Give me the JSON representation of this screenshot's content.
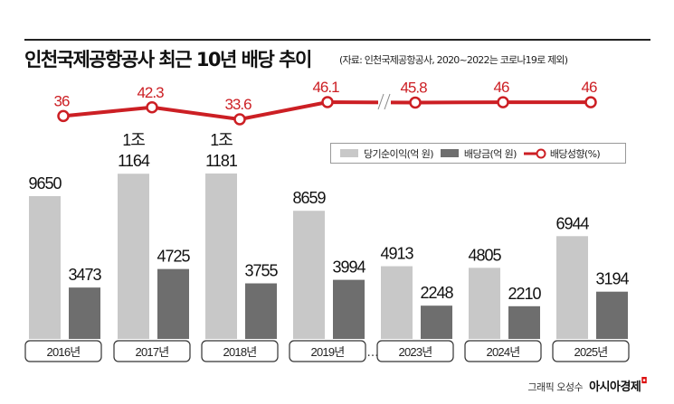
{
  "title": "인천국제공항공사 최근 10년 배당 추이",
  "subtitle": "(자료: 인천국제공항공사, 2020~2022는 코로나19로 제외)",
  "credit": {
    "author": "그래픽 오성수",
    "brand": "아시아경제"
  },
  "chart_data": {
    "type": "bar",
    "title": "인천국제공항공사 최근 10년 배당 추이",
    "categories": [
      "2016년",
      "2017년",
      "2018년",
      "2019년",
      "2023년",
      "2024년",
      "2025년"
    ],
    "gap_marker": "…",
    "line_break_marker": "//",
    "series": [
      {
        "name": "당기순이익(억 원)",
        "type": "bar",
        "color": "#c8c8c8",
        "values": [
          9650,
          11164,
          11181,
          8659,
          4913,
          4805,
          6944
        ],
        "labels": [
          [
            "9650"
          ],
          [
            "1조",
            "1164"
          ],
          [
            "1조",
            "1181"
          ],
          [
            "8659"
          ],
          [
            "4913"
          ],
          [
            "4805"
          ],
          [
            "6944"
          ]
        ]
      },
      {
        "name": "배당금(억 원)",
        "type": "bar",
        "color": "#6e6e6e",
        "values": [
          3473,
          4725,
          3755,
          3994,
          2248,
          2210,
          3194
        ],
        "labels": [
          [
            "3473"
          ],
          [
            "4725"
          ],
          [
            "3755"
          ],
          [
            "3994"
          ],
          [
            "2248"
          ],
          [
            "2210"
          ],
          [
            "3194"
          ]
        ]
      },
      {
        "name": "배당성향(%)",
        "type": "line",
        "color": "#cc1f24",
        "values": [
          36,
          42.3,
          33.6,
          46.1,
          45.8,
          46,
          46
        ],
        "labels": [
          "36",
          "42.3",
          "33.6",
          "46.1",
          "45.8",
          "46",
          "46"
        ]
      }
    ],
    "legend_position": "top-right",
    "grid": false
  }
}
